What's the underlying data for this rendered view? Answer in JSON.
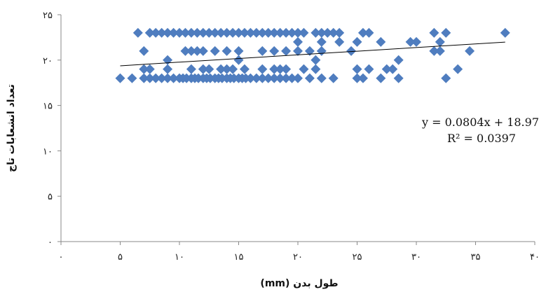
{
  "chart_data": {
    "type": "scatter",
    "xlabel": "طول بدن (mm)",
    "ylabel": "تعداد انشعابات تاج",
    "xlim": [
      0,
      40
    ],
    "ylim": [
      0,
      25
    ],
    "x_ticks": [
      0,
      5,
      10,
      15,
      20,
      25,
      30,
      35,
      40
    ],
    "y_ticks": [
      0,
      5,
      10,
      15,
      20,
      25
    ],
    "x_tick_labels": [
      "۰",
      "۵",
      "۱۰",
      "۱۵",
      "۲۰",
      "۲۵",
      "۳۰",
      "۳۵",
      "۴۰"
    ],
    "y_tick_labels": [
      "۰",
      "۵",
      "۱۰",
      "۱۵",
      "۲۰",
      "۲۵"
    ],
    "grid": false,
    "marker": "diamond",
    "marker_color": "#4F7DBF",
    "series": [
      {
        "points": [
          [
            5.0,
            18
          ],
          [
            6.0,
            18
          ],
          [
            7.0,
            18
          ],
          [
            7.5,
            18
          ],
          [
            8.0,
            18
          ],
          [
            8.5,
            18
          ],
          [
            9.0,
            18
          ],
          [
            9.5,
            18
          ],
          [
            10.0,
            18
          ],
          [
            10.3,
            18
          ],
          [
            10.6,
            18
          ],
          [
            11.0,
            18
          ],
          [
            11.3,
            18
          ],
          [
            11.6,
            18
          ],
          [
            12.0,
            18
          ],
          [
            12.3,
            18
          ],
          [
            12.6,
            18
          ],
          [
            13.0,
            18
          ],
          [
            13.3,
            18
          ],
          [
            13.6,
            18
          ],
          [
            14.0,
            18
          ],
          [
            14.3,
            18
          ],
          [
            14.6,
            18
          ],
          [
            15.0,
            18
          ],
          [
            15.3,
            18
          ],
          [
            15.6,
            18
          ],
          [
            16.0,
            18
          ],
          [
            16.5,
            18
          ],
          [
            17.0,
            18
          ],
          [
            17.5,
            18
          ],
          [
            18.0,
            18
          ],
          [
            18.5,
            18
          ],
          [
            19.0,
            18
          ],
          [
            19.5,
            18
          ],
          [
            20.0,
            18
          ],
          [
            21.0,
            18
          ],
          [
            22.0,
            18
          ],
          [
            23.0,
            18
          ],
          [
            25.0,
            18
          ],
          [
            25.5,
            18
          ],
          [
            27.0,
            18
          ],
          [
            28.5,
            18
          ],
          [
            32.5,
            18
          ],
          [
            7.0,
            19
          ],
          [
            7.5,
            19
          ],
          [
            9.0,
            19
          ],
          [
            11.0,
            19
          ],
          [
            12.0,
            19
          ],
          [
            12.5,
            19
          ],
          [
            13.5,
            19
          ],
          [
            14.0,
            19
          ],
          [
            14.5,
            19
          ],
          [
            15.5,
            19
          ],
          [
            17.0,
            19
          ],
          [
            18.0,
            19
          ],
          [
            18.5,
            19
          ],
          [
            19.0,
            19
          ],
          [
            20.5,
            19
          ],
          [
            21.5,
            19
          ],
          [
            25.0,
            19
          ],
          [
            26.0,
            19
          ],
          [
            27.5,
            19
          ],
          [
            28.0,
            19
          ],
          [
            33.5,
            19
          ],
          [
            9.0,
            20
          ],
          [
            15.0,
            20
          ],
          [
            21.5,
            20
          ],
          [
            28.5,
            20
          ],
          [
            7.0,
            21
          ],
          [
            10.5,
            21
          ],
          [
            11.0,
            21
          ],
          [
            11.5,
            21
          ],
          [
            12.0,
            21
          ],
          [
            13.0,
            21
          ],
          [
            14.0,
            21
          ],
          [
            15.0,
            21
          ],
          [
            17.0,
            21
          ],
          [
            18.0,
            21
          ],
          [
            19.0,
            21
          ],
          [
            20.0,
            21
          ],
          [
            21.0,
            21
          ],
          [
            22.0,
            21
          ],
          [
            24.5,
            21
          ],
          [
            31.5,
            21
          ],
          [
            32.0,
            21
          ],
          [
            34.5,
            21
          ],
          [
            20.0,
            22
          ],
          [
            22.0,
            22
          ],
          [
            23.5,
            22
          ],
          [
            25.0,
            22
          ],
          [
            27.0,
            22
          ],
          [
            29.5,
            22
          ],
          [
            30.0,
            22
          ],
          [
            32.0,
            22
          ],
          [
            6.5,
            23
          ],
          [
            7.5,
            23
          ],
          [
            8.0,
            23
          ],
          [
            8.5,
            23
          ],
          [
            9.0,
            23
          ],
          [
            9.5,
            23
          ],
          [
            10.0,
            23
          ],
          [
            10.5,
            23
          ],
          [
            11.0,
            23
          ],
          [
            11.5,
            23
          ],
          [
            12.0,
            23
          ],
          [
            12.5,
            23
          ],
          [
            13.0,
            23
          ],
          [
            13.5,
            23
          ],
          [
            14.0,
            23
          ],
          [
            14.5,
            23
          ],
          [
            15.0,
            23
          ],
          [
            15.5,
            23
          ],
          [
            16.0,
            23
          ],
          [
            16.5,
            23
          ],
          [
            17.0,
            23
          ],
          [
            17.5,
            23
          ],
          [
            18.0,
            23
          ],
          [
            18.5,
            23
          ],
          [
            19.0,
            23
          ],
          [
            19.5,
            23
          ],
          [
            20.0,
            23
          ],
          [
            20.5,
            23
          ],
          [
            21.5,
            23
          ],
          [
            22.0,
            23
          ],
          [
            22.5,
            23
          ],
          [
            23.0,
            23
          ],
          [
            23.5,
            23
          ],
          [
            25.5,
            23
          ],
          [
            26.0,
            23
          ],
          [
            31.5,
            23
          ],
          [
            32.5,
            23
          ],
          [
            37.5,
            23
          ]
        ]
      }
    ],
    "trendline": {
      "slope": 0.0804,
      "intercept": 18.97,
      "x_range": [
        5,
        37.5
      ],
      "equation_text": "y = 0.0804x + 18.97",
      "r2_text": "R² = 0.0397"
    }
  }
}
